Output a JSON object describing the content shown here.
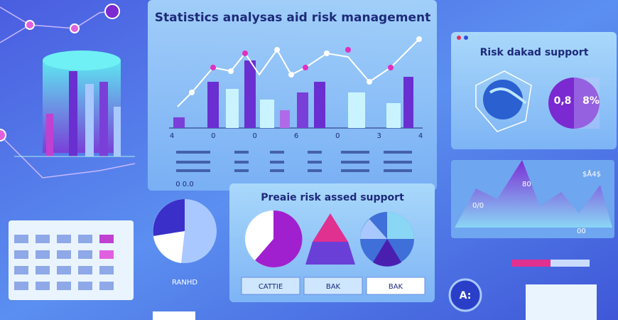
{
  "header": {
    "title": "Statistics analysas aid risk management"
  },
  "main_chart": {
    "x_labels": [
      "4",
      "0",
      "0",
      "6",
      "0",
      "3",
      "4"
    ],
    "footer": "0 0.0"
  },
  "risk_panel": {
    "title": "Risk dakad support",
    "gauge_left": "0,8",
    "gauge_right": "8%"
  },
  "terrain_panel": {
    "labels": [
      "$Å4$",
      "80",
      "0/0",
      "00"
    ]
  },
  "support_panel": {
    "title": "Preaie risk assed support",
    "buttons": [
      "CATTIE",
      "BAK",
      "BAK"
    ]
  },
  "left_pie": {
    "label": "RANHD"
  },
  "badge": {
    "label": "A:"
  }
}
